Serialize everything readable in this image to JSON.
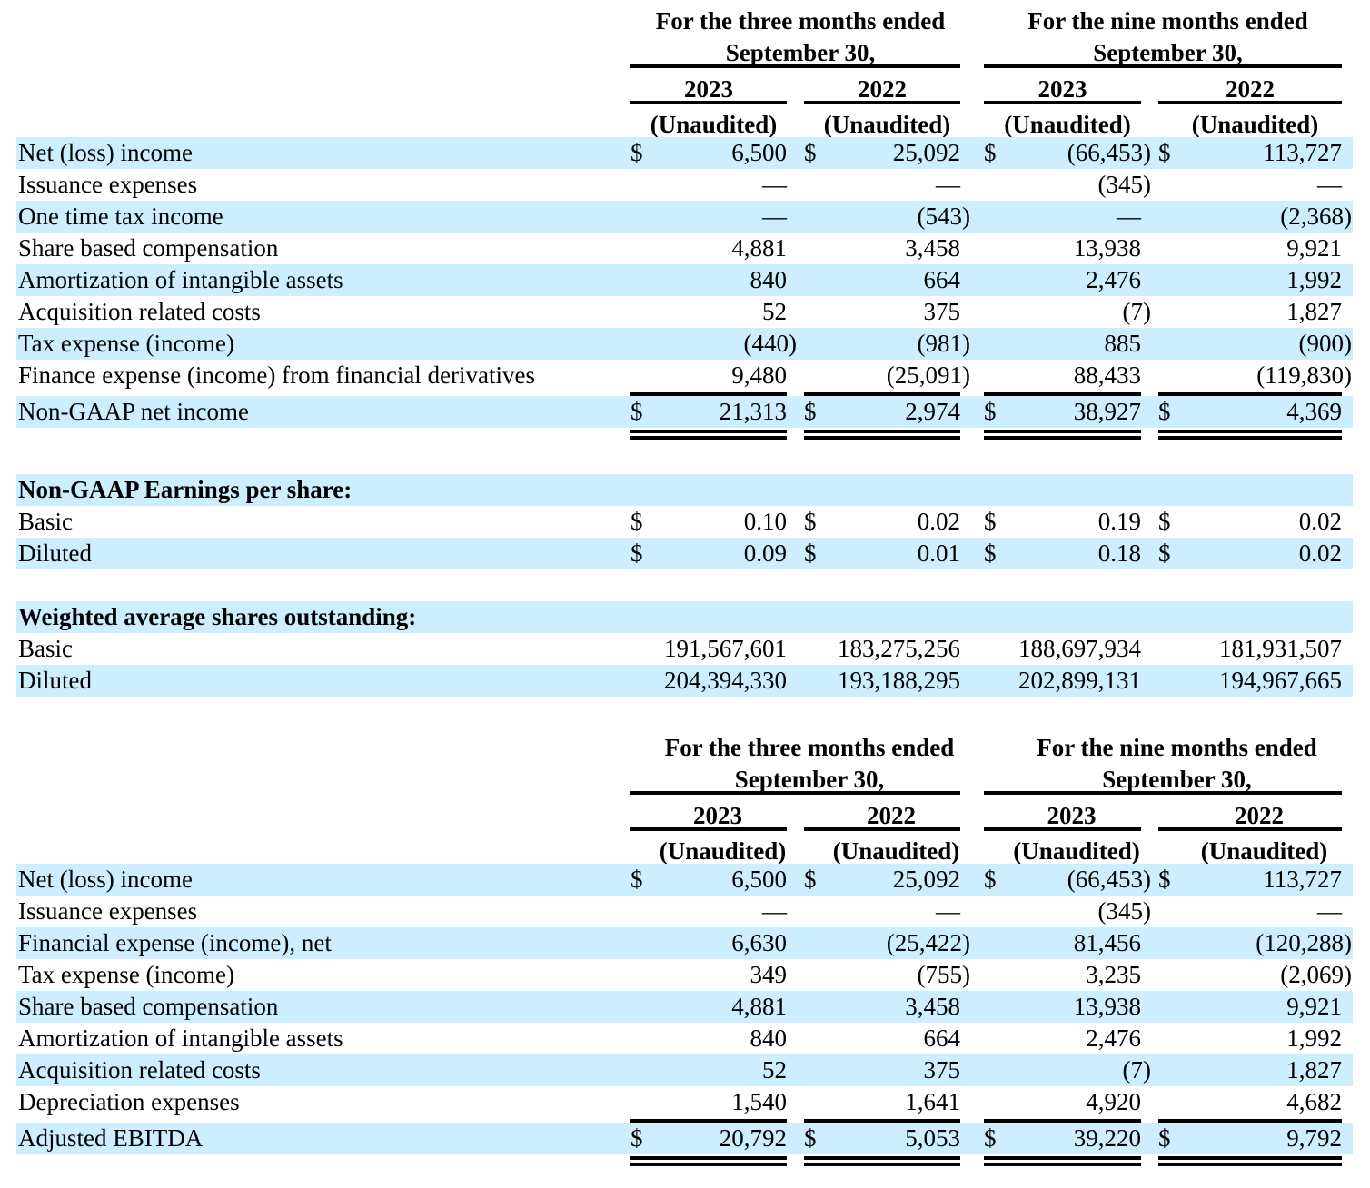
{
  "colors": {
    "row_shade": "#cceeff"
  },
  "tables": [
    {
      "header": {
        "groups": [
          {
            "line1": "For the three months ended",
            "line2": "September 30,"
          },
          {
            "line1": "For the nine months ended",
            "line2": "September 30,"
          }
        ],
        "years": [
          "2023",
          "2022",
          "2023",
          "2022"
        ],
        "audit": [
          "(Unaudited)",
          "(Unaudited)",
          "(Unaudited)",
          "(Unaudited)"
        ]
      },
      "rows": [
        {
          "label": "Net (loss) income",
          "dollar": [
            "$",
            "$",
            "$",
            "$"
          ],
          "values": [
            "6,500",
            "25,092",
            "(66,453)",
            "113,727"
          ]
        },
        {
          "label": "Issuance expenses",
          "values": [
            "—",
            "—",
            "(345)",
            "—"
          ]
        },
        {
          "label": "One time tax income",
          "values": [
            "—",
            "(543)",
            "—",
            "(2,368)"
          ]
        },
        {
          "label": "Share based compensation",
          "values": [
            "4,881",
            "3,458",
            "13,938",
            "9,921"
          ]
        },
        {
          "label": "Amortization of intangible assets",
          "values": [
            "840",
            "664",
            "2,476",
            "1,992"
          ]
        },
        {
          "label": "Acquisition related costs",
          "values": [
            "52",
            "375",
            "(7)",
            "1,827"
          ]
        },
        {
          "label": "Tax expense (income)",
          "values": [
            "(440)",
            "(981)",
            "885",
            "(900)"
          ]
        },
        {
          "label": "Finance expense (income) from financial derivatives",
          "values": [
            "9,480",
            "(25,091)",
            "88,433",
            "(119,830)"
          ]
        }
      ],
      "total": {
        "label": "Non-GAAP net income",
        "dollar": [
          "$",
          "$",
          "$",
          "$"
        ],
        "values": [
          "21,313",
          "2,974",
          "38,927",
          "4,369"
        ]
      }
    },
    {
      "header": {
        "groups": [
          {
            "line1": "For the three months ended",
            "line2": "September 30,"
          },
          {
            "line1": "For the nine months ended",
            "line2": "September 30,"
          }
        ],
        "years": [
          "2023",
          "2022",
          "2023",
          "2022"
        ],
        "audit": [
          "(Unaudited)",
          "(Unaudited)",
          "(Unaudited)",
          "(Unaudited)"
        ]
      },
      "rows": [
        {
          "label": "Net (loss) income",
          "dollar": [
            "$",
            "$",
            "$",
            "$"
          ],
          "values": [
            "6,500",
            "25,092",
            "(66,453)",
            "113,727"
          ]
        },
        {
          "label": "Issuance expenses",
          "values": [
            "—",
            "—",
            "(345)",
            "—"
          ]
        },
        {
          "label": "Financial expense (income), net",
          "values": [
            "6,630",
            "(25,422)",
            "81,456",
            "(120,288)"
          ]
        },
        {
          "label": "Tax expense (income)",
          "values": [
            "349",
            "(755)",
            "3,235",
            "(2,069)"
          ]
        },
        {
          "label": "Share based compensation",
          "values": [
            "4,881",
            "3,458",
            "13,938",
            "9,921"
          ]
        },
        {
          "label": "Amortization of intangible assets",
          "values": [
            "840",
            "664",
            "2,476",
            "1,992"
          ]
        },
        {
          "label": "Acquisition related costs",
          "values": [
            "52",
            "375",
            "(7)",
            "1,827"
          ]
        },
        {
          "label": "Depreciation expenses",
          "values": [
            "1,540",
            "1,641",
            "4,920",
            "4,682"
          ]
        }
      ],
      "total": {
        "label": "Adjusted EBITDA",
        "dollar": [
          "$",
          "$",
          "$",
          "$"
        ],
        "values": [
          "20,792",
          "5,053",
          "39,220",
          "9,792"
        ]
      }
    }
  ],
  "eps": {
    "heading": "Non-GAAP Earnings per share:",
    "rows": [
      {
        "label": "Basic",
        "dollar": [
          "$",
          "$",
          "$",
          "$"
        ],
        "values": [
          "0.10",
          "0.02",
          "0.19",
          "0.02"
        ]
      },
      {
        "label": "Diluted",
        "dollar": [
          "$",
          "$",
          "$",
          "$"
        ],
        "values": [
          "0.09",
          "0.01",
          "0.18",
          "0.02"
        ]
      }
    ]
  },
  "shares": {
    "heading": "Weighted average shares outstanding:",
    "rows": [
      {
        "label": "Basic",
        "values": [
          "191,567,601",
          "183,275,256",
          "188,697,934",
          "181,931,507"
        ]
      },
      {
        "label": "Diluted",
        "values": [
          "204,394,330",
          "193,188,295",
          "202,899,131",
          "194,967,665"
        ]
      }
    ]
  }
}
